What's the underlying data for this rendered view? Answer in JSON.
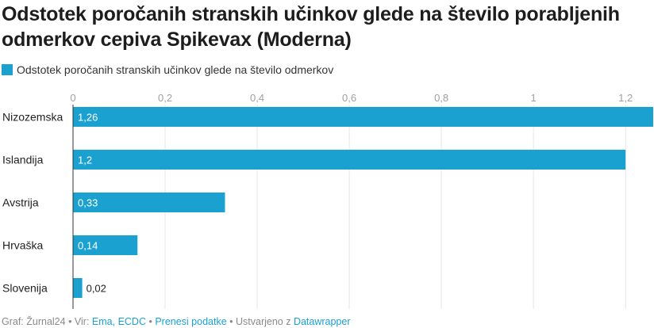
{
  "title": "Odstotek poročanih stranskih učinkov glede na število porabljenih odmerkov cepiva Spikevax (Moderna)",
  "legend": {
    "label": "Odstotek poročanih stranskih učinkov glede na število odmerkov",
    "color": "#1aa1d0"
  },
  "footer": {
    "prefix": "Graf: Žurnal24 • Vir: ",
    "source_link": "Ema, ECDC",
    "sep1": " • ",
    "download_link": "Prenesi podatke",
    "sep2": " • Ustvarjeno z ",
    "tool_link": "Datawrapper"
  },
  "chart_data": {
    "type": "bar",
    "orientation": "horizontal",
    "categories": [
      "Nizozemska",
      "Islandija",
      "Avstrija",
      "Hrvaška",
      "Slovenija"
    ],
    "values": [
      1.26,
      1.2,
      0.33,
      0.14,
      0.02
    ],
    "value_labels": [
      "1,26",
      "1,2",
      "0,33",
      "0,14",
      "0,02"
    ],
    "series": [
      {
        "name": "Odstotek poročanih stranskih učinkov glede na število odmerkov",
        "values": [
          1.26,
          1.2,
          0.33,
          0.14,
          0.02
        ]
      }
    ],
    "ticks": [
      0,
      0.2,
      0.4,
      0.6,
      0.8,
      1,
      1.2
    ],
    "tick_labels": [
      "0",
      "0,2",
      "0,4",
      "0,6",
      "0,8",
      "1",
      "1,2"
    ],
    "xlim": [
      0,
      1.26
    ],
    "grid": true,
    "legend_position": "top-left",
    "bar_color": "#1aa1d0"
  }
}
